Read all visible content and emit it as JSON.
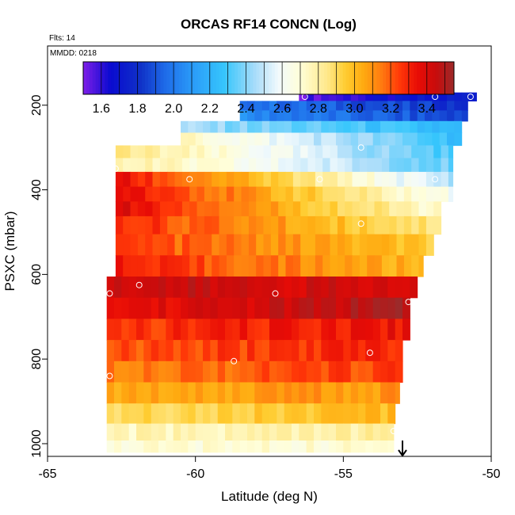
{
  "chart_data": {
    "type": "heatmap",
    "title": "ORCAS RF14 CONCN (Log)",
    "annotations": {
      "flights": "Flts: 14",
      "date": "MMDD: 0218"
    },
    "xlabel": "Latitude (deg N)",
    "ylabel": "PSXC (mbar)",
    "xlim": [
      -65,
      -50
    ],
    "ylim": [
      1030,
      60
    ],
    "x_ticks": [
      -65,
      -60,
      -55,
      -50
    ],
    "y_ticks": [
      200,
      400,
      600,
      800,
      1000
    ],
    "colorbar": {
      "min": 1.5,
      "max": 3.55,
      "ticks": [
        1.6,
        1.8,
        2.0,
        2.2,
        2.4,
        2.6,
        2.8,
        3.0,
        3.2,
        3.4
      ],
      "stops": [
        [
          1.5,
          "#7f1fe8"
        ],
        [
          1.65,
          "#0a0ad0"
        ],
        [
          1.82,
          "#1032c8"
        ],
        [
          1.95,
          "#1e6ae8"
        ],
        [
          2.1,
          "#2a9af8"
        ],
        [
          2.28,
          "#36c6fc"
        ],
        [
          2.45,
          "#a8dcfa"
        ],
        [
          2.58,
          "#f2fafc"
        ],
        [
          2.7,
          "#fffed8"
        ],
        [
          2.85,
          "#ffe88a"
        ],
        [
          2.95,
          "#ffcc30"
        ],
        [
          3.05,
          "#ffaa10"
        ],
        [
          3.15,
          "#ff7a10"
        ],
        [
          3.25,
          "#ff3808"
        ],
        [
          3.35,
          "#e80c06"
        ],
        [
          3.45,
          "#c80c0c"
        ],
        [
          3.55,
          "#9c2a2a"
        ]
      ]
    },
    "series": [
      {
        "p": 180,
        "lat0": -56.5,
        "lat1": -50.5,
        "v0": 1.55,
        "v1": 1.75
      },
      {
        "p": 200,
        "lat0": -58.5,
        "lat1": -50.8,
        "v0": 2.0,
        "v1": 1.8
      },
      {
        "p": 225,
        "lat0": -58.5,
        "lat1": -50.8,
        "v0": 2.05,
        "v1": 1.85
      },
      {
        "p": 250,
        "lat0": -60.5,
        "lat1": -51.0,
        "v0": 2.45,
        "v1": 2.2
      },
      {
        "p": 280,
        "lat0": -60.5,
        "lat1": -51.0,
        "v0": 2.75,
        "v1": 2.25
      },
      {
        "p": 310,
        "lat0": -62.7,
        "lat1": -51.3,
        "v0": 2.85,
        "v1": 2.3
      },
      {
        "p": 340,
        "lat0": -62.7,
        "lat1": -51.3,
        "v0": 2.8,
        "v1": 2.35
      },
      {
        "p": 375,
        "lat0": -62.7,
        "lat1": -51.3,
        "v0": 3.35,
        "v1": 2.45
      },
      {
        "p": 410,
        "lat0": -62.7,
        "lat1": -51.3,
        "v0": 3.4,
        "v1": 2.6
      },
      {
        "p": 445,
        "lat0": -62.7,
        "lat1": -51.7,
        "v0": 3.4,
        "v1": 2.7
      },
      {
        "p": 480,
        "lat0": -62.7,
        "lat1": -51.7,
        "v0": 3.3,
        "v1": 2.85
      },
      {
        "p": 530,
        "lat0": -62.7,
        "lat1": -51.9,
        "v0": 3.25,
        "v1": 2.95
      },
      {
        "p": 580,
        "lat0": -62.7,
        "lat1": -52.3,
        "v0": 3.3,
        "v1": 3.0
      },
      {
        "p": 630,
        "lat0": -63.0,
        "lat1": -52.5,
        "v0": 3.45,
        "v1": 3.4
      },
      {
        "p": 680,
        "lat0": -63.0,
        "lat1": -52.7,
        "v0": 3.35,
        "v1": 3.5
      },
      {
        "p": 730,
        "lat0": -63.0,
        "lat1": -52.7,
        "v0": 3.25,
        "v1": 3.35
      },
      {
        "p": 780,
        "lat0": -63.0,
        "lat1": -52.9,
        "v0": 3.2,
        "v1": 3.3
      },
      {
        "p": 830,
        "lat0": -63.0,
        "lat1": -52.9,
        "v0": 3.15,
        "v1": 3.25
      },
      {
        "p": 880,
        "lat0": -63.0,
        "lat1": -53.1,
        "v0": 3.05,
        "v1": 3.1
      },
      {
        "p": 930,
        "lat0": -63.0,
        "lat1": -53.2,
        "v0": 2.9,
        "v1": 3.0
      },
      {
        "p": 975,
        "lat0": -63.0,
        "lat1": -53.3,
        "v0": 2.75,
        "v1": 2.8
      },
      {
        "p": 1010,
        "lat0": -63.0,
        "lat1": -53.3,
        "v0": 2.7,
        "v1": 2.7
      }
    ],
    "markers": [
      {
        "lat": -56.3,
        "p": 180
      },
      {
        "lat": -51.9,
        "p": 180
      },
      {
        "lat": -50.7,
        "p": 180
      },
      {
        "lat": -54.4,
        "p": 300
      },
      {
        "lat": -62.7,
        "p": 350
      },
      {
        "lat": -60.2,
        "p": 375
      },
      {
        "lat": -55.8,
        "p": 375
      },
      {
        "lat": -51.9,
        "p": 375
      },
      {
        "lat": -54.4,
        "p": 480
      },
      {
        "lat": -61.9,
        "p": 625
      },
      {
        "lat": -62.9,
        "p": 645
      },
      {
        "lat": -57.3,
        "p": 645
      },
      {
        "lat": -52.8,
        "p": 665
      },
      {
        "lat": -54.1,
        "p": 785
      },
      {
        "lat": -58.7,
        "p": 805
      },
      {
        "lat": -62.9,
        "p": 840
      },
      {
        "lat": -53.3,
        "p": 970
      }
    ],
    "arrow_latitude": -53.0
  }
}
